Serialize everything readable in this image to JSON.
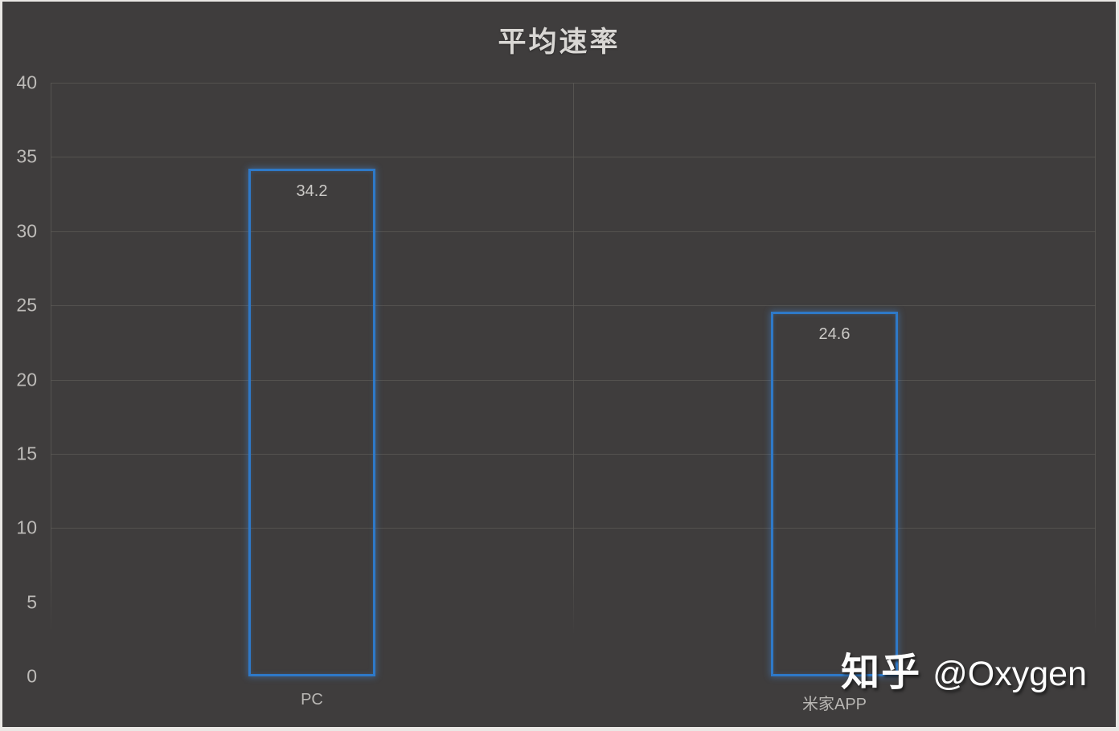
{
  "title": "平均速率",
  "watermark": {
    "brand": "知乎",
    "handle": "@Oxygen"
  },
  "colors": {
    "frame_border": "#eae8e5",
    "background": "#3f3d3d",
    "gridline": "#5c5a56",
    "bar_outline": "#2e79c8",
    "title_text": "#d9d7d4",
    "axis_text": "#bdbbb8",
    "value_text": "#cbc9c6",
    "watermark_text": "#fdfdfd"
  },
  "chart_data": {
    "type": "bar",
    "title": "平均速率",
    "categories": [
      "PC",
      "米家APP"
    ],
    "values": [
      34.2,
      24.6
    ],
    "value_labels": [
      "34.2",
      "24.6"
    ],
    "xlabel": "",
    "ylabel": "",
    "ylim": [
      0,
      40
    ],
    "yticks": [
      0,
      5,
      10,
      15,
      20,
      25,
      30,
      35,
      40
    ],
    "gridline_values": [
      10,
      15,
      20,
      25,
      30,
      35,
      40
    ],
    "grid": "horizontal, upper portion only (vertical lines fade toward bottom)",
    "legend": "none",
    "bar_style": "hollow outline with glow"
  }
}
